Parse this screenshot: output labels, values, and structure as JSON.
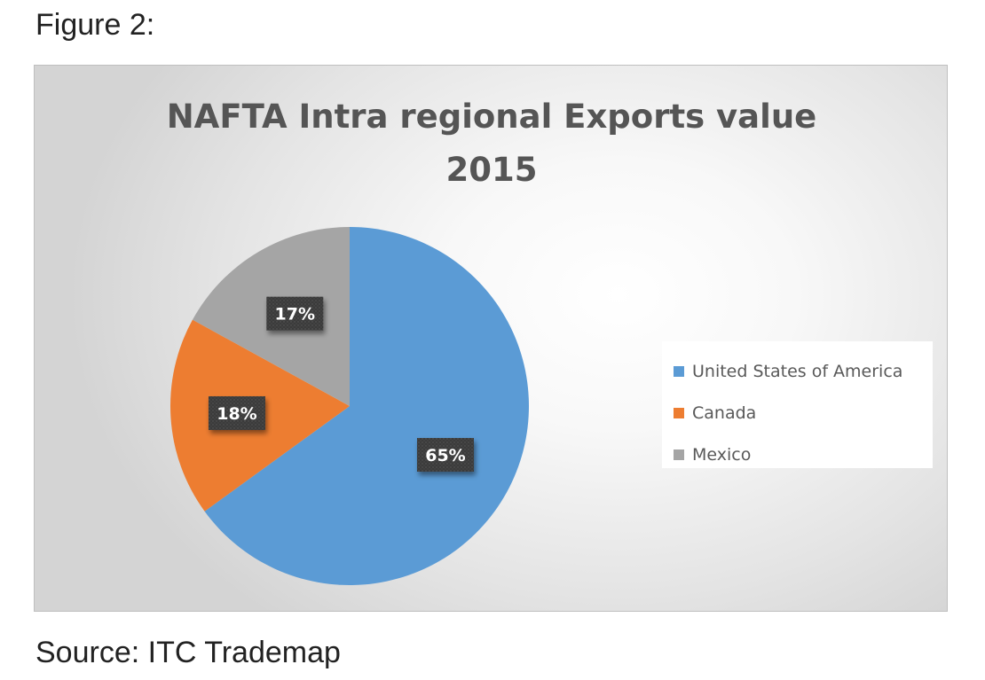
{
  "figure_label": "Figure 2:",
  "source_label": "Source: ITC Trademap",
  "chart_data": {
    "type": "pie",
    "title": "NAFTA Intra regional Exports value 2015",
    "title_lines": [
      "NAFTA Intra regional Exports value",
      "2015"
    ],
    "categories": [
      "United States of America",
      "Canada",
      "Mexico"
    ],
    "values": [
      65,
      18,
      17
    ],
    "data_labels": [
      "65%",
      "18%",
      "17%"
    ],
    "colors": [
      "#5b9bd5",
      "#ed7d31",
      "#a5a5a5"
    ],
    "legend_position": "right",
    "grid": false
  }
}
